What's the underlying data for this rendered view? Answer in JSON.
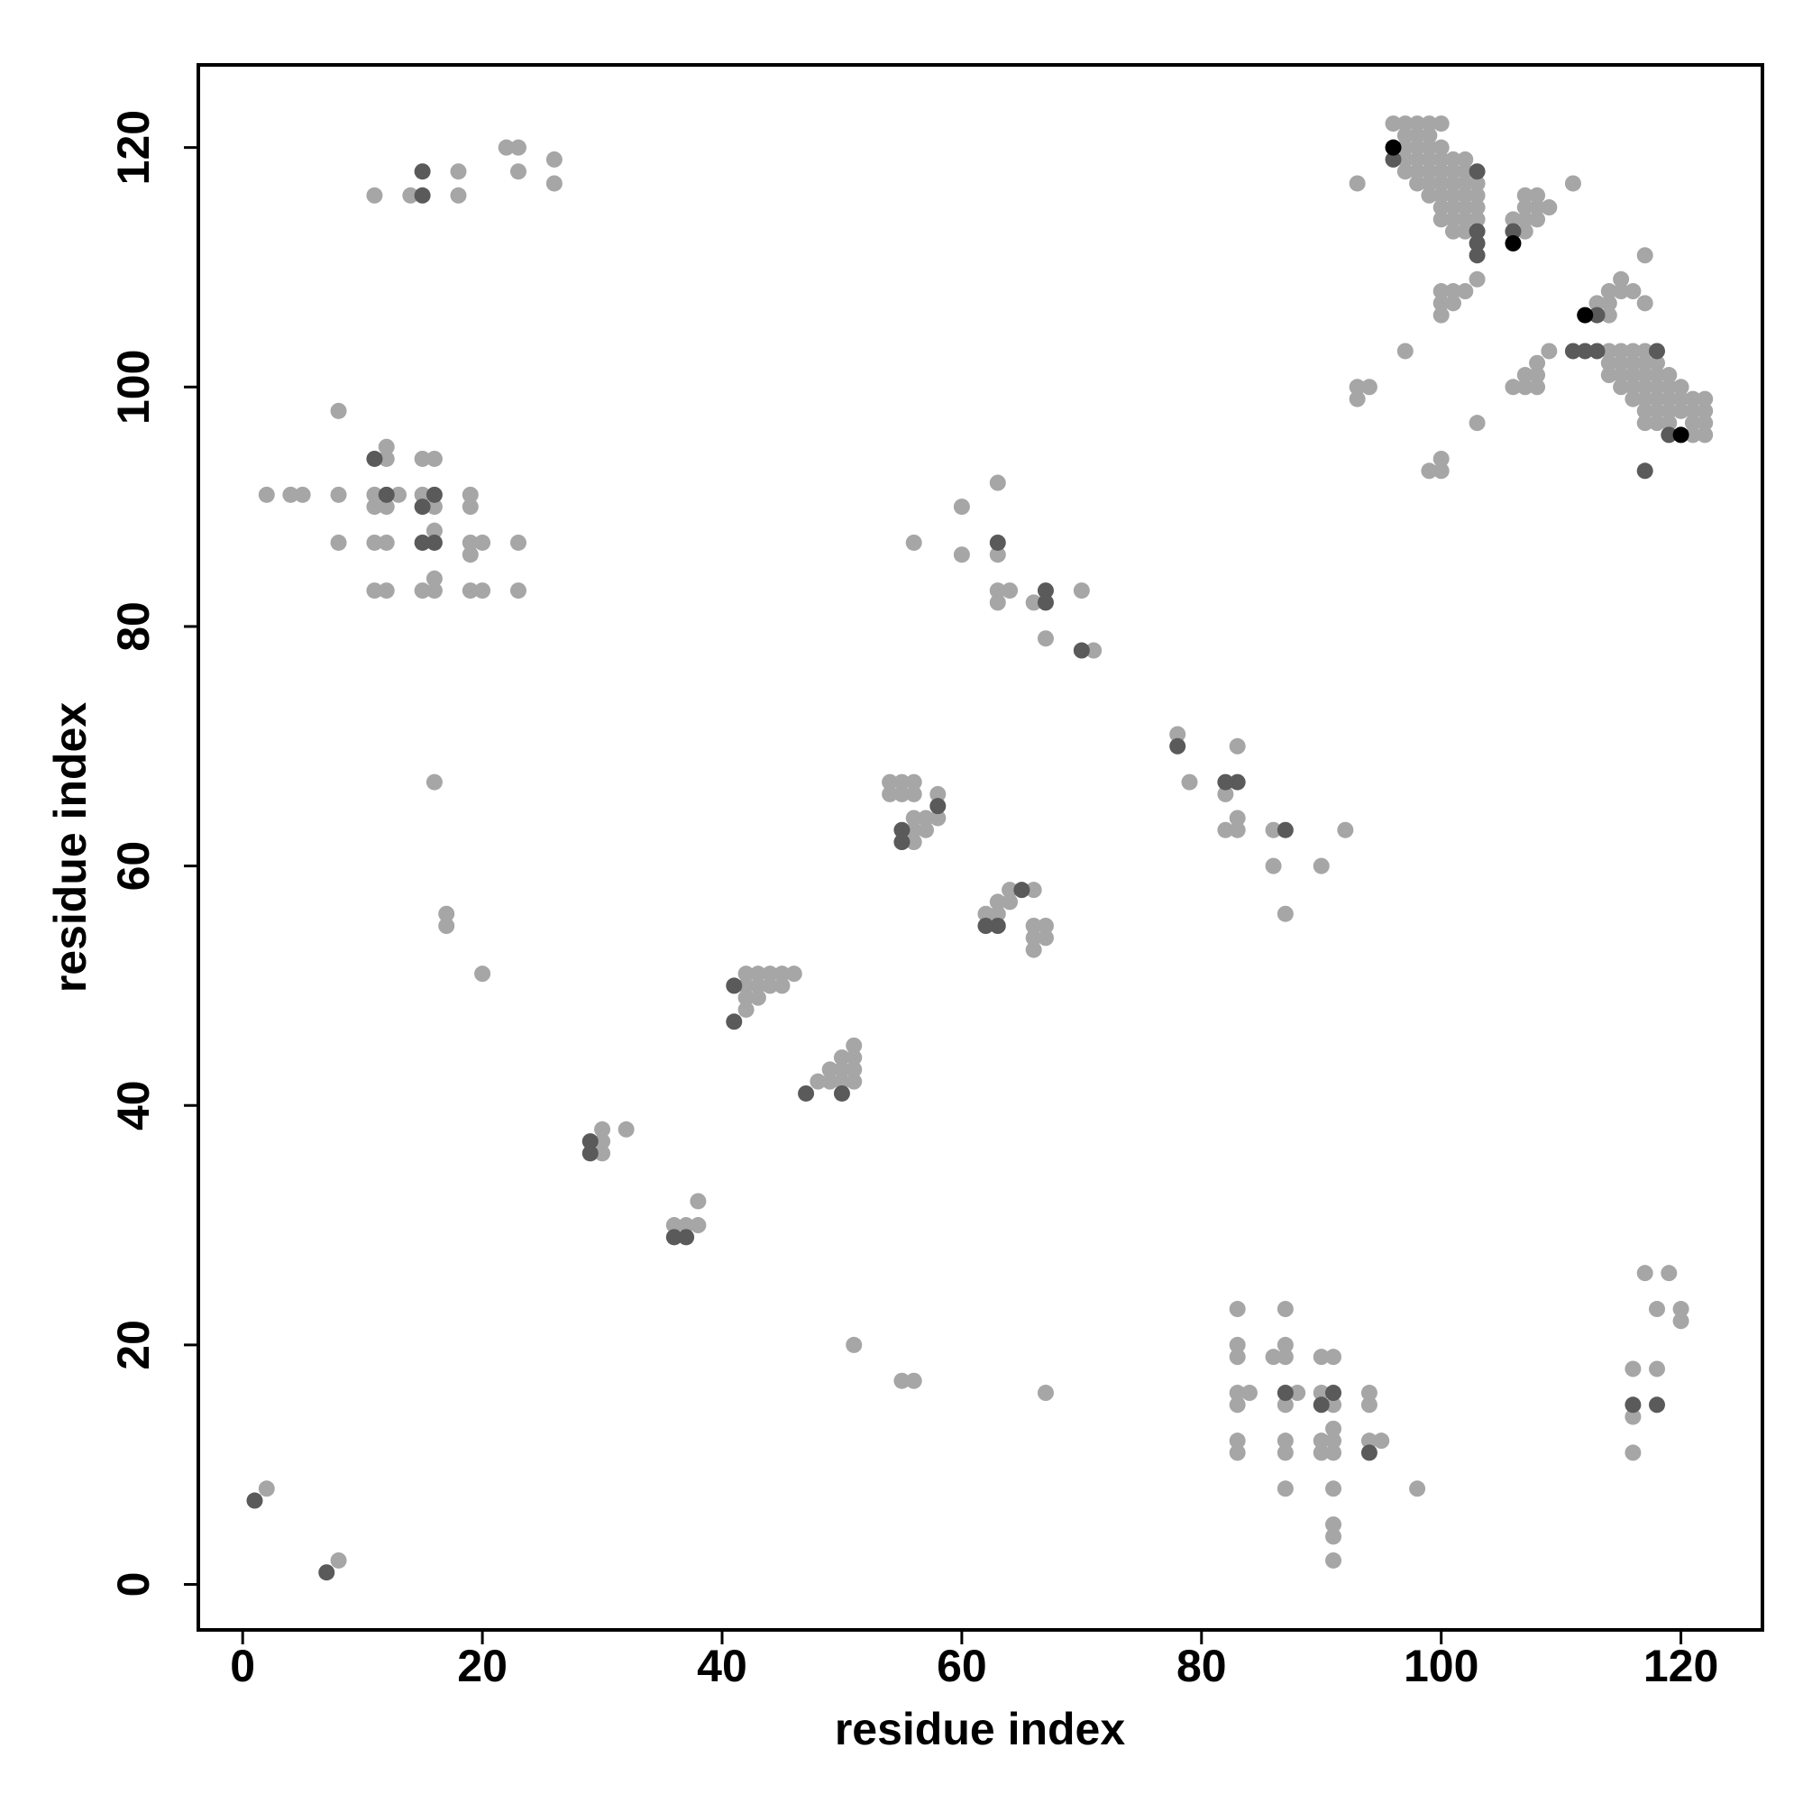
{
  "chart_data": {
    "type": "scatter",
    "xlabel": "residue index",
    "ylabel": "residue index",
    "xlim": [
      -3.7,
      126.8
    ],
    "ylim": [
      -3.8,
      126.9
    ],
    "xticks": [
      0,
      20,
      40,
      60,
      80,
      100,
      120
    ],
    "yticks": [
      0,
      20,
      40,
      60,
      80,
      100,
      120
    ],
    "series": [
      {
        "color": "#a6a6a6",
        "x": [
          2,
          8,
          30,
          30,
          30,
          32,
          36,
          37,
          38,
          38,
          42,
          43,
          44,
          45,
          46,
          42,
          43,
          44,
          45,
          42,
          43,
          42,
          48,
          49,
          50,
          51,
          49,
          50,
          51,
          50,
          51,
          51,
          54,
          55,
          56,
          54,
          55,
          56,
          57,
          58,
          58,
          56,
          56,
          57,
          56,
          62,
          63,
          64,
          64,
          63,
          66,
          66,
          67,
          66,
          67,
          66,
          56,
          60,
          60,
          63,
          63,
          63,
          64,
          63,
          66,
          67,
          70,
          71,
          78,
          79,
          82,
          83,
          83,
          82,
          83,
          86,
          86,
          90,
          92,
          87,
          11,
          14,
          18,
          18,
          22,
          23,
          23,
          26,
          26,
          8,
          2,
          4,
          5,
          8,
          8,
          11,
          11,
          12,
          13,
          12,
          12,
          15,
          16,
          15,
          16,
          16,
          11,
          12,
          16,
          11,
          12,
          15,
          16,
          19,
          19,
          19,
          20,
          19,
          19,
          20,
          23,
          23,
          16,
          17,
          17,
          20,
          51,
          55,
          56,
          67,
          83,
          83,
          83,
          83,
          84,
          83,
          83,
          83,
          86,
          87,
          87,
          87,
          88,
          87,
          87,
          87,
          87,
          90,
          91,
          90,
          91,
          90,
          91,
          90,
          91,
          91,
          91,
          91,
          91,
          91,
          94,
          94,
          94,
          95,
          98,
          117,
          119,
          118,
          120,
          120,
          116,
          118,
          116,
          116,
          96,
          97,
          98,
          99,
          100,
          97,
          98,
          99,
          97,
          98,
          99,
          100,
          97,
          98,
          99,
          100,
          101,
          102,
          97,
          98,
          99,
          100,
          101,
          102,
          98,
          99,
          100,
          101,
          102,
          103,
          99,
          100,
          101,
          102,
          103,
          100,
          101,
          102,
          103,
          100,
          101,
          102,
          103,
          101,
          102,
          93,
          97,
          100,
          101,
          102,
          100,
          101,
          100,
          103,
          103,
          93,
          94,
          93,
          99,
          100,
          100,
          106,
          107,
          107,
          108,
          108,
          107,
          109,
          108,
          107,
          111,
          106,
          107,
          107,
          108,
          108,
          109,
          108,
          113,
          114,
          114,
          115,
          115,
          116,
          117,
          114,
          117,
          115,
          116,
          117,
          114,
          115,
          116,
          117,
          118,
          114,
          115,
          116,
          117,
          118,
          119,
          115,
          116,
          117,
          118,
          119,
          120,
          116,
          117,
          118,
          119,
          120,
          121,
          122,
          117,
          118,
          119,
          120,
          121,
          122,
          117,
          118,
          119,
          121,
          122,
          121,
          122,
          114
        ],
        "y": [
          8,
          2,
          38,
          37,
          36,
          38,
          30,
          30,
          30,
          32,
          51,
          51,
          51,
          51,
          51,
          50,
          50,
          50,
          50,
          49,
          49,
          48,
          42,
          42,
          42,
          42,
          43,
          43,
          43,
          44,
          44,
          45,
          66,
          66,
          66,
          67,
          67,
          67,
          64,
          64,
          66,
          64,
          63,
          63,
          62,
          56,
          57,
          57,
          58,
          56,
          58,
          55,
          55,
          54,
          54,
          53,
          87,
          90,
          86,
          92,
          86,
          83,
          83,
          82,
          82,
          79,
          83,
          78,
          71,
          67,
          66,
          70,
          64,
          63,
          63,
          63,
          60,
          60,
          63,
          56,
          116,
          116,
          118,
          116,
          120,
          120,
          118,
          119,
          117,
          98,
          91,
          91,
          91,
          91,
          87,
          91,
          90,
          90,
          91,
          95,
          94,
          94,
          94,
          91,
          90,
          88,
          87,
          87,
          84,
          83,
          83,
          83,
          83,
          91,
          90,
          87,
          87,
          86,
          83,
          83,
          87,
          83,
          67,
          56,
          55,
          51,
          20,
          17,
          17,
          16,
          23,
          20,
          19,
          16,
          16,
          15,
          12,
          11,
          19,
          20,
          23,
          19,
          16,
          15,
          12,
          11,
          8,
          19,
          19,
          16,
          15,
          12,
          12,
          11,
          11,
          13,
          8,
          5,
          4,
          2,
          16,
          15,
          12,
          12,
          8,
          26,
          26,
          23,
          23,
          22,
          18,
          18,
          14,
          11,
          122,
          122,
          122,
          122,
          122,
          121,
          121,
          121,
          120,
          120,
          120,
          120,
          119,
          119,
          119,
          119,
          119,
          119,
          118,
          118,
          118,
          118,
          118,
          118,
          117,
          117,
          117,
          117,
          117,
          117,
          116,
          116,
          116,
          116,
          116,
          115,
          115,
          115,
          115,
          114,
          114,
          114,
          114,
          113,
          113,
          117,
          103,
          108,
          108,
          108,
          107,
          107,
          106,
          109,
          97,
          100,
          100,
          99,
          93,
          94,
          93,
          114,
          115,
          116,
          116,
          115,
          114,
          115,
          114,
          113,
          117,
          100,
          100,
          101,
          101,
          102,
          103,
          100,
          107,
          107,
          108,
          108,
          109,
          108,
          107,
          106,
          111,
          103,
          103,
          103,
          102,
          102,
          102,
          102,
          102,
          101,
          101,
          101,
          101,
          101,
          101,
          100,
          100,
          100,
          100,
          100,
          100,
          99,
          99,
          99,
          99,
          99,
          99,
          99,
          98,
          98,
          98,
          98,
          98,
          98,
          97,
          97,
          97,
          97,
          97,
          96,
          96,
          103
        ]
      },
      {
        "color": "#5a5a5a",
        "x": [
          1,
          7,
          29,
          29,
          36,
          37,
          41,
          41,
          47,
          50,
          55,
          55,
          58,
          62,
          63,
          65,
          63,
          67,
          67,
          70,
          78,
          82,
          83,
          87,
          15,
          15,
          11,
          15,
          16,
          12,
          15,
          16,
          87,
          90,
          91,
          94,
          116,
          118,
          96,
          103,
          103,
          103,
          103,
          106,
          113,
          111,
          112,
          113,
          118,
          119,
          117
        ],
        "y": [
          7,
          1,
          37,
          36,
          29,
          29,
          50,
          47,
          41,
          41,
          63,
          62,
          65,
          55,
          55,
          58,
          87,
          83,
          82,
          78,
          70,
          67,
          67,
          63,
          118,
          116,
          94,
          90,
          91,
          91,
          87,
          87,
          16,
          15,
          16,
          11,
          15,
          15,
          119,
          118,
          113,
          112,
          111,
          113,
          106,
          103,
          103,
          103,
          103,
          96,
          93
        ]
      },
      {
        "color": "#000000",
        "x": [
          96,
          106,
          112,
          120
        ],
        "y": [
          120,
          112,
          106,
          96
        ]
      }
    ]
  }
}
